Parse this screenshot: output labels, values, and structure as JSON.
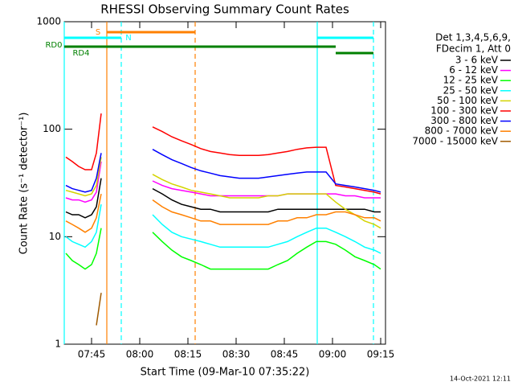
{
  "chart_data": {
    "type": "line",
    "title": "RHESSI Observing Summary Count Rates",
    "xlabel": "Start Time (09-Mar-10 07:35:22)",
    "ylabel": "Count Rate (s⁻¹ detector⁻¹)",
    "legend_header": [
      "Det 1,3,4,5,6,9,",
      "FDecim 1, Att 0"
    ],
    "timestamp": "14-Oct-2021 12:11",
    "log_y": true,
    "xlim": [
      36.5,
      136.5
    ],
    "xticks": [
      {
        "value": 45,
        "label": "07:45"
      },
      {
        "value": 60,
        "label": "08:00"
      },
      {
        "value": 75,
        "label": "08:15"
      },
      {
        "value": 90,
        "label": "08:30"
      },
      {
        "value": 105,
        "label": "08:45"
      },
      {
        "value": 120,
        "label": "09:00"
      },
      {
        "value": 135,
        "label": "09:15"
      }
    ],
    "ylim": [
      1,
      1000
    ],
    "yticks": [
      1,
      10,
      100,
      1000
    ],
    "x": [
      37,
      39,
      41,
      43,
      45,
      46.5,
      48,
      56,
      64,
      67,
      70,
      73,
      76,
      79,
      82,
      85,
      88,
      91,
      94,
      97,
      100,
      103,
      106,
      109,
      112,
      115,
      118,
      121,
      124,
      127,
      130,
      133,
      135
    ],
    "series": [
      {
        "name": "3 - 6 keV",
        "color": "#000000",
        "values": [
          17,
          16,
          16,
          15,
          16,
          19,
          35,
          null,
          28,
          25,
          22,
          20,
          19,
          18,
          18,
          17,
          17,
          17,
          17,
          17,
          17,
          18,
          18,
          18,
          18,
          18,
          18,
          18,
          18,
          18,
          18,
          17,
          17
        ]
      },
      {
        "name": "6 - 12 keV",
        "color": "#ff00ff",
        "values": [
          23,
          22,
          22,
          21,
          22,
          26,
          50,
          null,
          33,
          30,
          28,
          27,
          26,
          25,
          24,
          24,
          24,
          24,
          24,
          24,
          24,
          24,
          25,
          25,
          25,
          25,
          25,
          25,
          24,
          24,
          23,
          23,
          23
        ]
      },
      {
        "name": "12 - 25 keV",
        "color": "#00ff00",
        "values": [
          7,
          6,
          5.5,
          5,
          5.5,
          7,
          12,
          null,
          11,
          9,
          7.5,
          6.5,
          6,
          5.5,
          5,
          5,
          5,
          5,
          5,
          5,
          5,
          5.5,
          6,
          7,
          8,
          9,
          9,
          8.5,
          7.5,
          6.5,
          6,
          5.5,
          5
        ]
      },
      {
        "name": "25 - 50 keV",
        "color": "#00ffff",
        "values": [
          10,
          9,
          8.5,
          8,
          9,
          11,
          20,
          null,
          16,
          13,
          11,
          10,
          9.5,
          9,
          8.5,
          8,
          8,
          8,
          8,
          8,
          8,
          8.5,
          9,
          10,
          11,
          12,
          12,
          11,
          10,
          9,
          8,
          7.5,
          7
        ]
      },
      {
        "name": "50 - 100 keV",
        "color": "#d4d400",
        "values": [
          27,
          26,
          25,
          24,
          25,
          30,
          55,
          null,
          38,
          34,
          31,
          29,
          27,
          26,
          25,
          24,
          23,
          23,
          23,
          23,
          24,
          24,
          25,
          25,
          25,
          25,
          25,
          21,
          18,
          16,
          14,
          13,
          12
        ]
      },
      {
        "name": "100 - 300 keV",
        "color": "#ff0000",
        "values": [
          55,
          50,
          45,
          42,
          42,
          60,
          140,
          null,
          105,
          95,
          85,
          78,
          72,
          66,
          62,
          60,
          58,
          57,
          57,
          57,
          58,
          60,
          62,
          65,
          67,
          68,
          68,
          30,
          29,
          28,
          27,
          26,
          25
        ]
      },
      {
        "name": "300 - 800 keV",
        "color": "#0000ff",
        "values": [
          30,
          28,
          27,
          26,
          27,
          35,
          60,
          null,
          65,
          58,
          52,
          48,
          44,
          41,
          39,
          37,
          36,
          35,
          35,
          35,
          36,
          37,
          38,
          39,
          40,
          40,
          40,
          31,
          30,
          29,
          28,
          27,
          26
        ]
      },
      {
        "name": "800 - 7000 keV",
        "color": "#ff8000",
        "values": [
          14,
          13,
          12,
          11,
          12,
          15,
          25,
          null,
          22,
          19,
          17,
          16,
          15,
          14,
          14,
          13,
          13,
          13,
          13,
          13,
          13,
          14,
          14,
          15,
          15,
          16,
          16,
          17,
          17,
          16,
          15,
          15,
          14
        ]
      },
      {
        "name": "7000 - 15000 keV",
        "color": "#a05a00",
        "values": [
          null,
          null,
          null,
          null,
          null,
          1.5,
          3,
          null,
          null,
          null,
          null,
          null,
          null,
          null,
          null,
          null,
          null,
          null,
          null,
          null,
          null,
          null,
          null,
          null,
          null,
          null,
          null,
          null,
          null,
          null,
          null,
          null,
          null
        ]
      }
    ],
    "flags": [
      {
        "label": "S",
        "color": "#ff8000",
        "segments": [
          [
            49.75,
            77.25
          ]
        ]
      },
      {
        "label": "N",
        "color": "#00ffff",
        "segments": [
          [
            36.5,
            54.25
          ],
          [
            115.25,
            132.75
          ]
        ]
      },
      {
        "label": "RD0",
        "color": "#008000",
        "segments": [
          [
            36.5,
            121
          ]
        ]
      },
      {
        "label": "RD4",
        "color": "#008000",
        "segments": [
          [
            121,
            132.75
          ]
        ]
      }
    ],
    "vlines": [
      {
        "x": 49.75,
        "color": "#ff8000",
        "dashed": false
      },
      {
        "x": 77.25,
        "color": "#ff8000",
        "dashed": true
      },
      {
        "x": 36.5,
        "color": "#00ffff",
        "dashed": false
      },
      {
        "x": 54.25,
        "color": "#00ffff",
        "dashed": true
      },
      {
        "x": 115.25,
        "color": "#00ffff",
        "dashed": false
      },
      {
        "x": 132.75,
        "color": "#00ffff",
        "dashed": true
      }
    ]
  }
}
